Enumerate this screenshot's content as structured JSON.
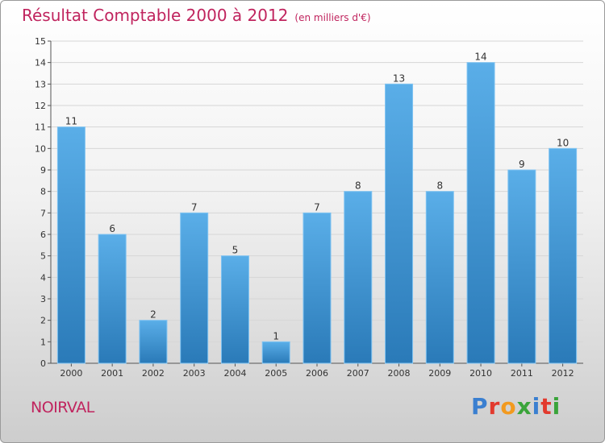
{
  "title": "Résultat Comptable 2000 à 2012",
  "subtitle": "(en milliers d'€)",
  "location": "NOIRVAL",
  "brand": {
    "name": "Proxiti",
    "letter_colors": [
      "#3a7fd0",
      "#e23a2e",
      "#f29a1f",
      "#3aa43a",
      "#3a7fd0",
      "#e23a2e",
      "#3aa43a"
    ]
  },
  "colors": {
    "bar_top": "#5aaee8",
    "bar_bottom": "#2a7ab8",
    "title": "#c0245e",
    "grid": "#d6d6d6"
  },
  "chart_data": {
    "type": "bar",
    "categories": [
      "2000",
      "2001",
      "2002",
      "2003",
      "2004",
      "2005",
      "2006",
      "2007",
      "2008",
      "2009",
      "2010",
      "2011",
      "2012"
    ],
    "values": [
      11,
      6,
      2,
      7,
      5,
      1,
      7,
      8,
      13,
      8,
      14,
      9,
      10
    ],
    "data_labels": [
      "11",
      "6",
      "2",
      "7",
      "5",
      "1",
      "7",
      "8",
      "13",
      "8",
      "14",
      "9",
      "10"
    ],
    "yticks": [
      "0",
      "1",
      "2",
      "3",
      "4",
      "5",
      "6",
      "7",
      "8",
      "9",
      "10",
      "11",
      "12",
      "13",
      "14",
      "15"
    ],
    "ylim": [
      0,
      15
    ],
    "grid": true,
    "legend": "none"
  }
}
